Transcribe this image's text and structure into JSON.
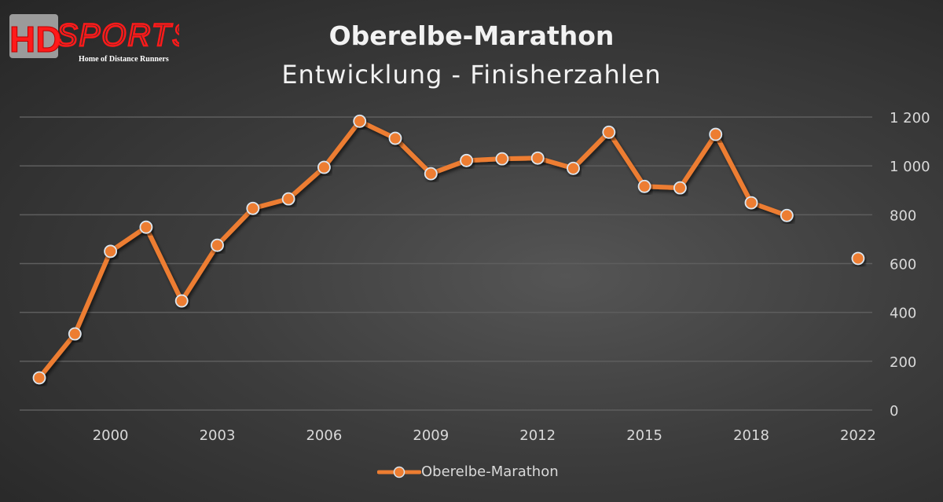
{
  "logo": {
    "text_main": "HD",
    "text_sports": "SPORTS",
    "tagline": "Home of Distance Runners"
  },
  "chart_data": {
    "type": "line",
    "title": "Oberelbe-Marathon",
    "subtitle": "Entwicklung - Finisherzahlen",
    "categories": [
      "1998",
      "1999",
      "2000",
      "2001",
      "2002",
      "2003",
      "2004",
      "2005",
      "2006",
      "2007",
      "2008",
      "2009",
      "2010",
      "2011",
      "2012",
      "2013",
      "2014",
      "2015",
      "2016",
      "2017",
      "2018",
      "2019",
      "2021",
      "2022"
    ],
    "x_tick_labels": [
      "2000",
      "2003",
      "2006",
      "2009",
      "2012",
      "2015",
      "2018",
      "2022"
    ],
    "series": [
      {
        "name": "Oberelbe-Marathon",
        "color": "#ed7d31",
        "values": [
          132,
          312,
          650,
          749,
          447,
          675,
          826,
          865,
          994,
          1183,
          1113,
          968,
          1022,
          1029,
          1032,
          990,
          1138,
          916,
          910,
          1129,
          849,
          797,
          null,
          621
        ]
      }
    ],
    "ylim": [
      0,
      1200
    ],
    "y_ticks": [
      0,
      200,
      400,
      600,
      800,
      1000,
      1200
    ],
    "y_tick_labels": [
      "0",
      "200",
      "400",
      "600",
      "800",
      "1 000",
      "1 200"
    ],
    "y_axis_side": "right",
    "grid": true,
    "legend": "bottom"
  }
}
